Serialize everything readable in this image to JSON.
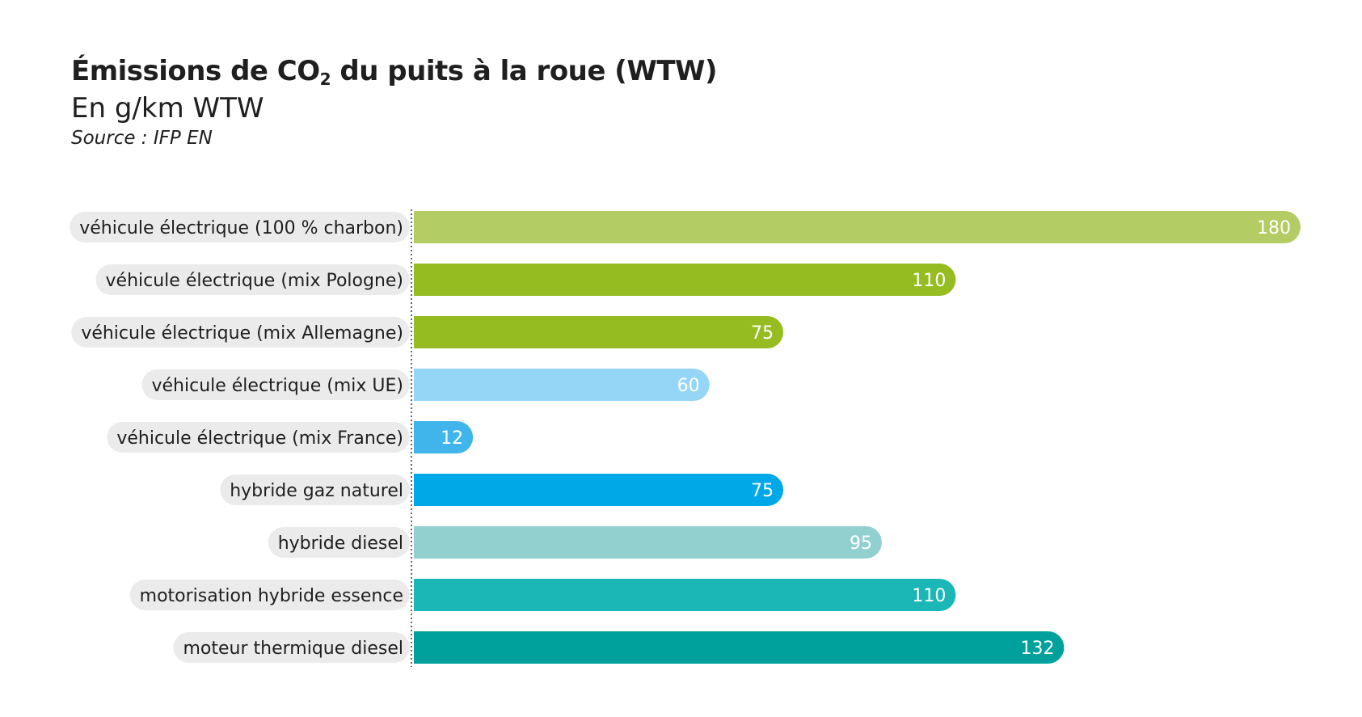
{
  "header": {
    "title_main": "Émissions de CO",
    "title_sub": "2",
    "title_rest": " du puits à la roue (WTW)",
    "subtitle": "En g/km WTW",
    "source": "Source : IFP EN"
  },
  "chart_data": {
    "type": "bar",
    "orientation": "horizontal",
    "title": "Émissions de CO2 du puits à la roue (WTW)",
    "subtitle": "En g/km WTW",
    "categories": [
      "véhicule électrique (100 % charbon)",
      "véhicule électrique (mix Pologne)",
      "véhicule électrique (mix Allemagne)",
      "véhicule électrique (mix UE)",
      "véhicule électrique (mix France)",
      "hybride gaz naturel",
      "hybride diesel",
      "motorisation hybride essence",
      "moteur thermique diesel"
    ],
    "values": [
      180,
      110,
      75,
      60,
      12,
      75,
      95,
      110,
      132
    ],
    "value_labels": [
      "180",
      "110",
      "75",
      "60",
      "12",
      "75",
      "95",
      "110",
      "132"
    ],
    "colors": [
      "#b3cc63",
      "#95bd22",
      "#95bd22",
      "#95d5f5",
      "#3fb5ec",
      "#00a8e7",
      "#92d0d0",
      "#1bb6b6",
      "#00a19d"
    ],
    "xlim": [
      0,
      180
    ],
    "grid": false,
    "legend": "none"
  }
}
